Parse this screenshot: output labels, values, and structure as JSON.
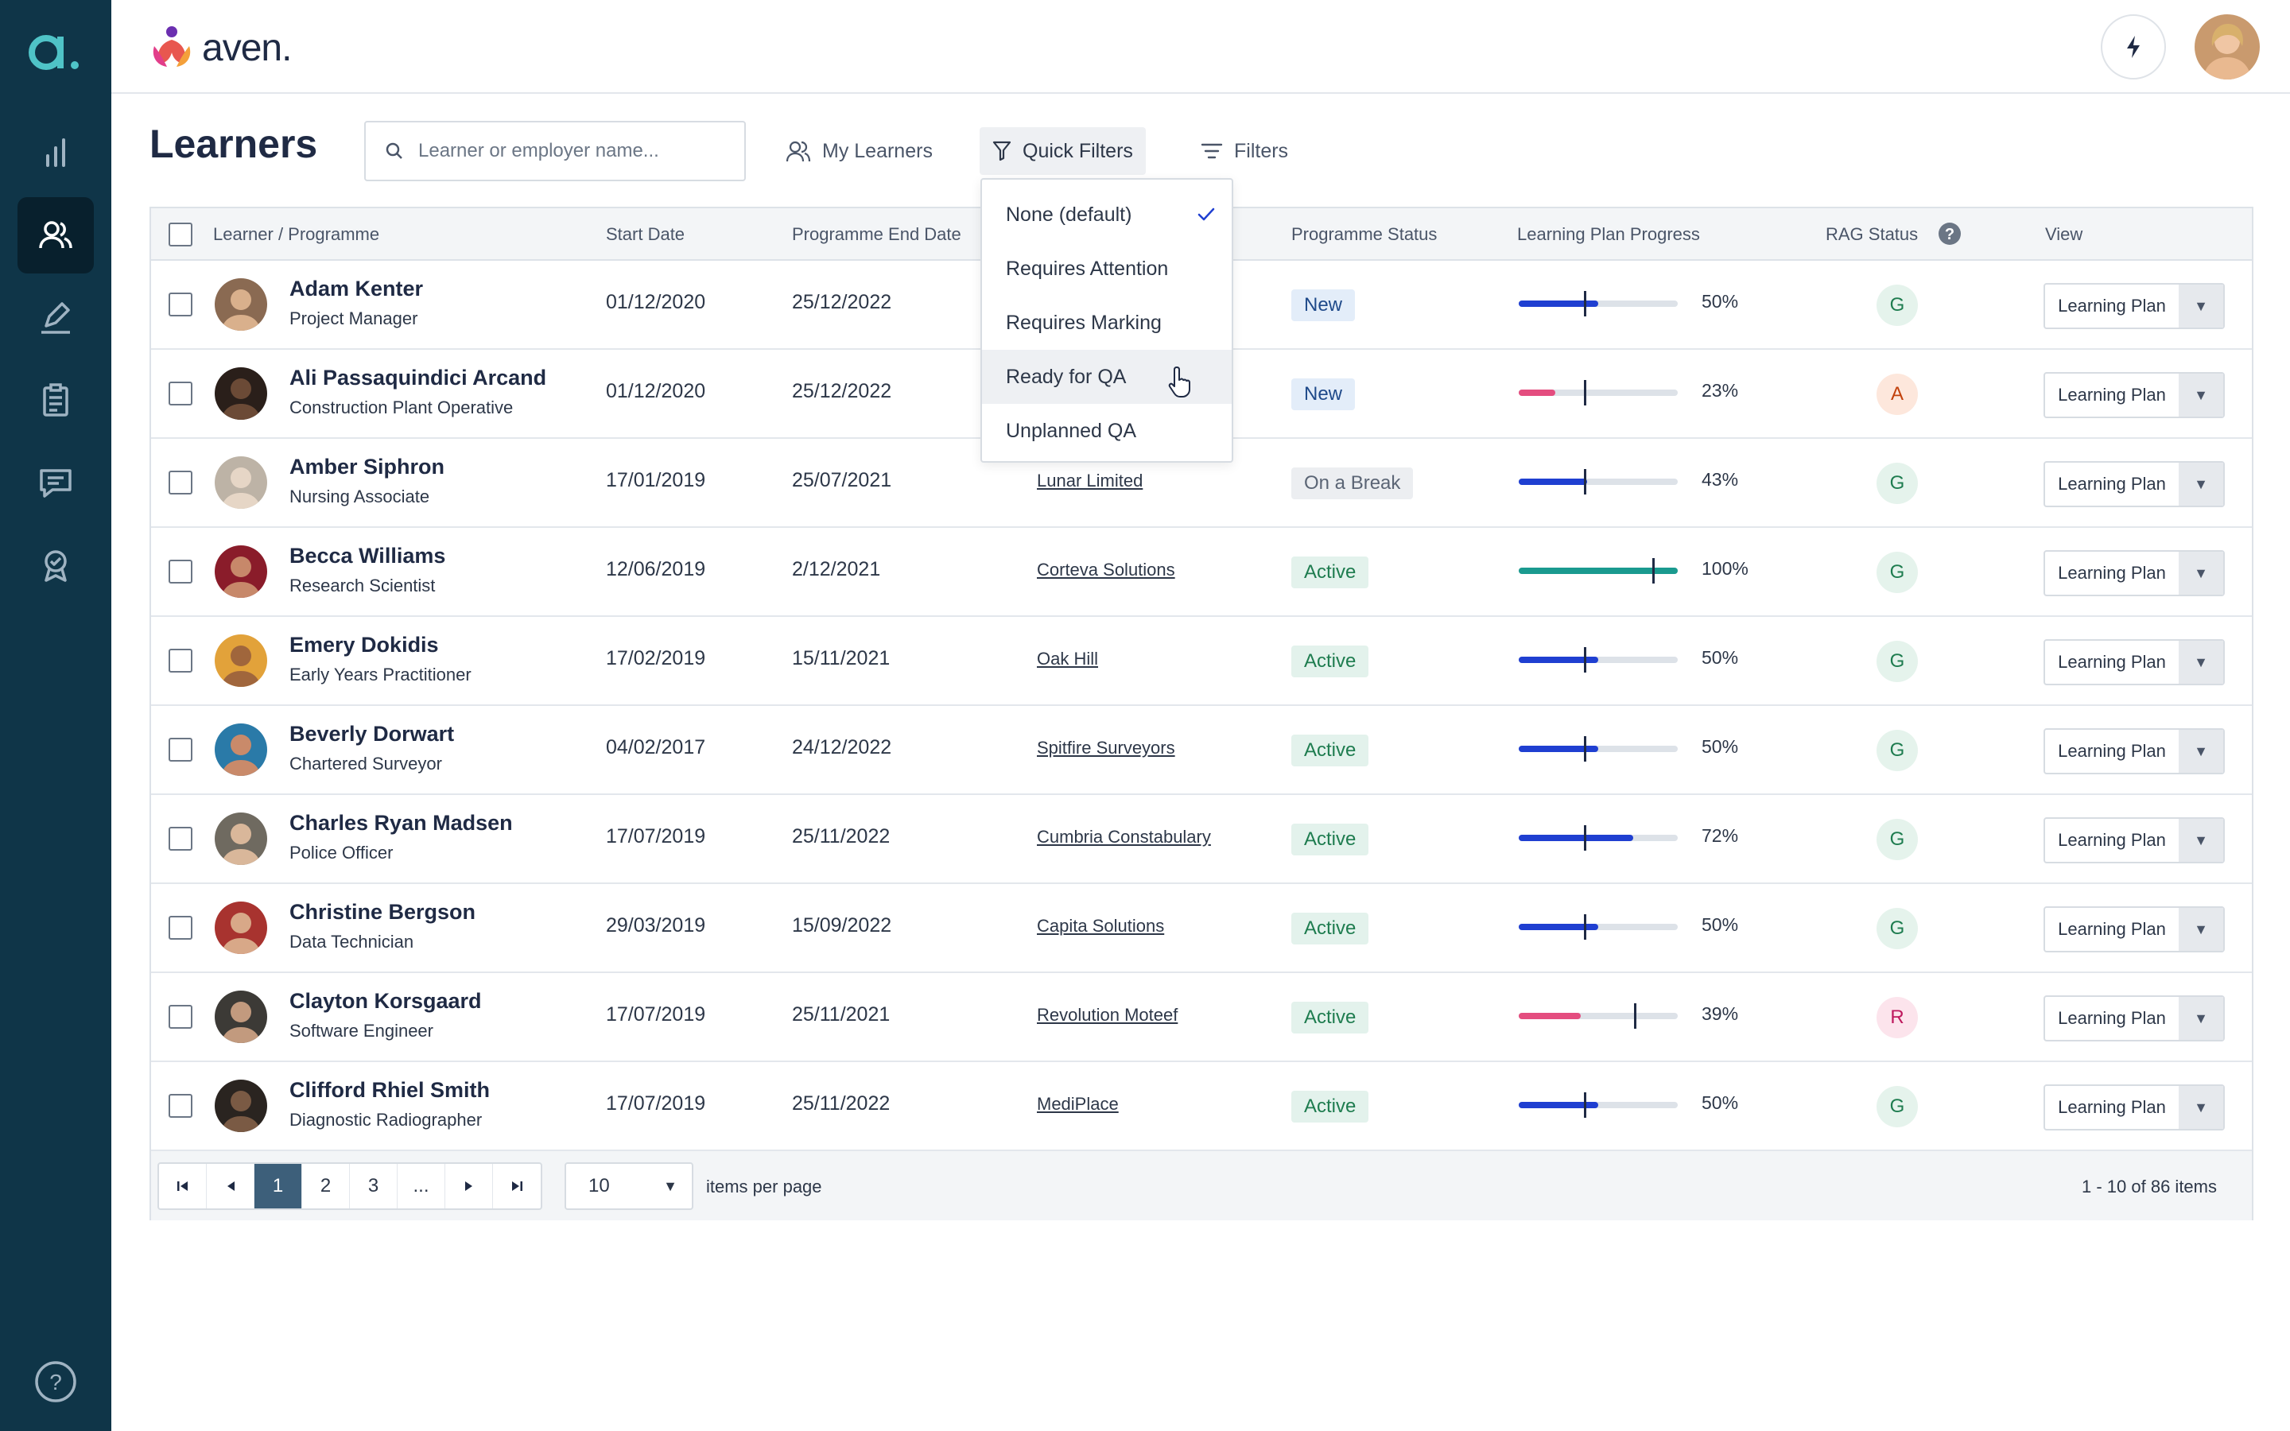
{
  "app": {
    "brand_name": "aven.",
    "logo_letter": "a."
  },
  "colors": {
    "sidebar_bg": "#0f3548",
    "accent_teal": "#4fc3c7",
    "progress_blue": "#1f3fd1",
    "progress_pink": "#e44d7f",
    "progress_teal": "#1a9a8f"
  },
  "sidebar": {
    "icons": [
      "chart-icon",
      "users-icon",
      "pen-icon",
      "clipboard-icon",
      "chat-icon",
      "badge-icon",
      "help-icon"
    ]
  },
  "page": {
    "title": "Learners"
  },
  "search": {
    "placeholder": "Learner or employer name..."
  },
  "toolbar": {
    "my_learners": "My Learners",
    "quick_filters": "Quick Filters",
    "filters": "Filters"
  },
  "quick_filter_menu": {
    "items": [
      "None (default)",
      "Requires Attention",
      "Requires Marking",
      "Ready for QA",
      "Unplanned QA"
    ],
    "selected": "None (default)",
    "hovered": "Ready for QA"
  },
  "table": {
    "headers": {
      "learner": "Learner / Programme",
      "start": "Start Date",
      "end": "Programme End Date",
      "status": "Programme Status",
      "progress": "Learning Plan Progress",
      "rag": "RAG Status",
      "view": "View"
    },
    "view_label": "Learning  Plan",
    "rows": [
      {
        "name": "Adam Kenter",
        "role": "Project Manager",
        "start": "01/12/2020",
        "end": "25/12/2022",
        "employer": "",
        "status": "New",
        "progress": "50%",
        "rag": "G"
      },
      {
        "name": "Ali Passaquindici Arcand",
        "role": "Construction Plant Operative",
        "start": "01/12/2020",
        "end": "25/12/2022",
        "employer": "",
        "status": "New",
        "progress": "23%",
        "rag": "A"
      },
      {
        "name": "Amber Siphron",
        "role": "Nursing Associate",
        "start": "17/01/2019",
        "end": "25/07/2021",
        "employer": "Lunar Limited",
        "status": "On a Break",
        "progress": "43%",
        "rag": "G"
      },
      {
        "name": "Becca Williams",
        "role": "Research Scientist",
        "start": "12/06/2019",
        "end": "2/12/2021",
        "employer": "Corteva Solutions",
        "status": "Active",
        "progress": "100%",
        "rag": "G"
      },
      {
        "name": "Emery Dokidis",
        "role": "Early Years Practitioner",
        "start": "17/02/2019",
        "end": "15/11/2021",
        "employer": "Oak Hill",
        "status": "Active",
        "progress": "50%",
        "rag": "G"
      },
      {
        "name": "Beverly Dorwart",
        "role": "Chartered Surveyor",
        "start": "04/02/2017",
        "end": "24/12/2022",
        "employer": "Spitfire Surveyors",
        "status": "Active",
        "progress": "50%",
        "rag": "G"
      },
      {
        "name": "Charles Ryan Madsen",
        "role": "Police Officer",
        "start": "17/07/2019",
        "end": "25/11/2022",
        "employer": "Cumbria Constabulary",
        "status": "Active",
        "progress": "72%",
        "rag": "G"
      },
      {
        "name": "Christine Bergson",
        "role": "Data Technician",
        "start": "29/03/2019",
        "end": "15/09/2022",
        "employer": "Capita Solutions",
        "status": "Active",
        "progress": "50%",
        "rag": "G"
      },
      {
        "name": "Clayton Korsgaard",
        "role": "Software Engineer",
        "start": "17/07/2019",
        "end": "25/11/2021",
        "employer": "Revolution Moteef",
        "status": "Active",
        "progress": "39%",
        "rag": "R"
      },
      {
        "name": "Clifford Rhiel Smith",
        "role": "Diagnostic Radiographer",
        "start": "17/07/2019",
        "end": "25/11/2022",
        "employer": "MediPlace",
        "status": "Active",
        "progress": "50%",
        "rag": "G"
      }
    ]
  },
  "pagination": {
    "pages": [
      "1",
      "2",
      "3",
      "..."
    ],
    "current": "1",
    "per_page": "10",
    "per_page_label": "items per page",
    "summary": "1 - 10 of 86 items"
  }
}
